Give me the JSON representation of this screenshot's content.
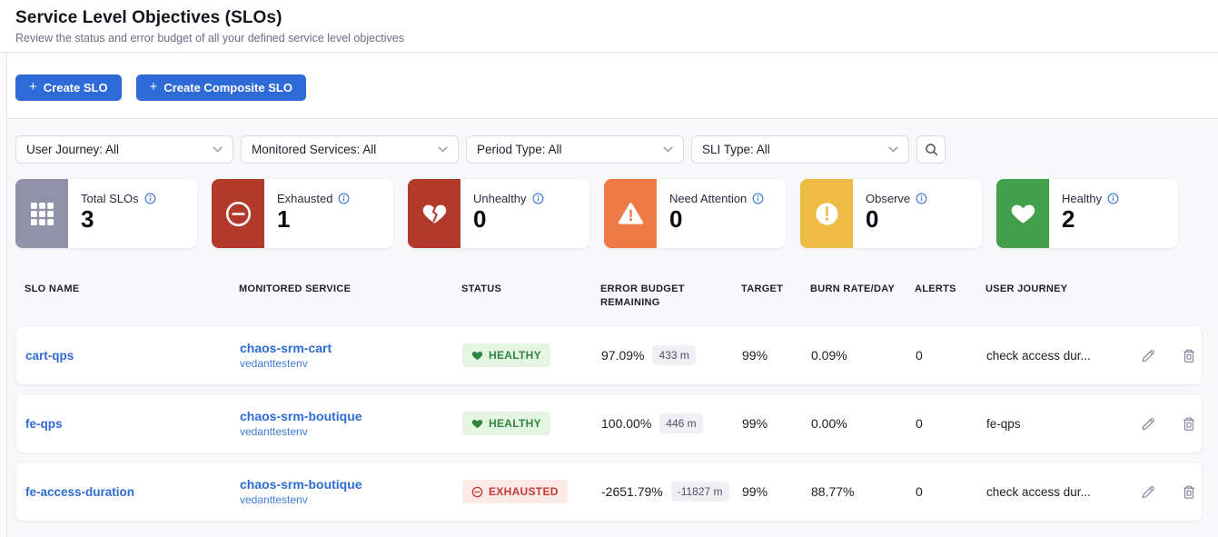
{
  "page": {
    "title": "Service Level Objectives (SLOs)",
    "subtitle": "Review the status and error budget of all your defined service level objectives"
  },
  "actions": {
    "plus_glyph": "+",
    "create_slo_label": "Create SLO",
    "create_composite_slo_label": "Create Composite SLO"
  },
  "filters": {
    "dropdowns": [
      {
        "name": "user-journey-filter",
        "label": "User Journey: All"
      },
      {
        "name": "monitored-services-filter",
        "label": "Monitored Services: All"
      },
      {
        "name": "period-type-filter",
        "label": "Period Type: All"
      },
      {
        "name": "sli-type-filter",
        "label": "SLI Type: All"
      }
    ]
  },
  "summary_cards": [
    {
      "label": "Total SLOs",
      "value": "3",
      "icon": "grid-icon",
      "color": "#9192a9"
    },
    {
      "label": "Exhausted",
      "value": "1",
      "icon": "minus-circle-icon",
      "color": "#b13a2b"
    },
    {
      "label": "Unhealthy",
      "value": "0",
      "icon": "broken-heart-icon",
      "color": "#b13a2b"
    },
    {
      "label": "Need Attention",
      "value": "0",
      "icon": "warning-triangle-icon",
      "color": "#ee7a45"
    },
    {
      "label": "Observe",
      "value": "0",
      "icon": "exclamation-circle-icon",
      "color": "#eebc44"
    },
    {
      "label": "Healthy",
      "value": "2",
      "icon": "heart-icon",
      "color": "#42a04c"
    }
  ],
  "table": {
    "columns": [
      "SLO NAME",
      "MONITORED SERVICE",
      "STATUS",
      "ERROR BUDGET REMAINING",
      "TARGET",
      "BURN RATE/DAY",
      "ALERTS",
      "USER JOURNEY"
    ],
    "rows": [
      {
        "slo_name": "cart-qps",
        "monitored_service": "chaos-srm-cart",
        "environment": "vedanttestenv",
        "status": "HEALTHY",
        "error_budget_remaining": "97.09%",
        "error_budget_minutes": "433 m",
        "target": "99%",
        "burn_rate": "0.09%",
        "alerts": "0",
        "user_journey": "check access dur..."
      },
      {
        "slo_name": "fe-qps",
        "monitored_service": "chaos-srm-boutique",
        "environment": "vedanttestenv",
        "status": "HEALTHY",
        "error_budget_remaining": "100.00%",
        "error_budget_minutes": "446 m",
        "target": "99%",
        "burn_rate": "0.00%",
        "alerts": "0",
        "user_journey": "fe-qps"
      },
      {
        "slo_name": "fe-access-duration",
        "monitored_service": "chaos-srm-boutique",
        "environment": "vedanttestenv",
        "status": "EXHAUSTED",
        "error_budget_remaining": "-2651.79%",
        "error_budget_minutes": "-11827 m",
        "target": "99%",
        "burn_rate": "88.77%",
        "alerts": "0",
        "user_journey": "check access dur..."
      }
    ]
  },
  "status_styles": {
    "HEALTHY": {
      "bg": "#e4f5e2",
      "fg": "#2f8540",
      "icon": "heart-small-icon"
    },
    "EXHAUSTED": {
      "bg": "#fbeae8",
      "fg": "#c53b34",
      "icon": "minus-circle-small-icon"
    }
  },
  "colors": {
    "primary_blue": "#2f6bd8",
    "link_blue": "#2e6bd3",
    "info_icon_blue": "#3a77d8",
    "main_background": "#f8f8fb",
    "divider": "#e3e3ea"
  }
}
